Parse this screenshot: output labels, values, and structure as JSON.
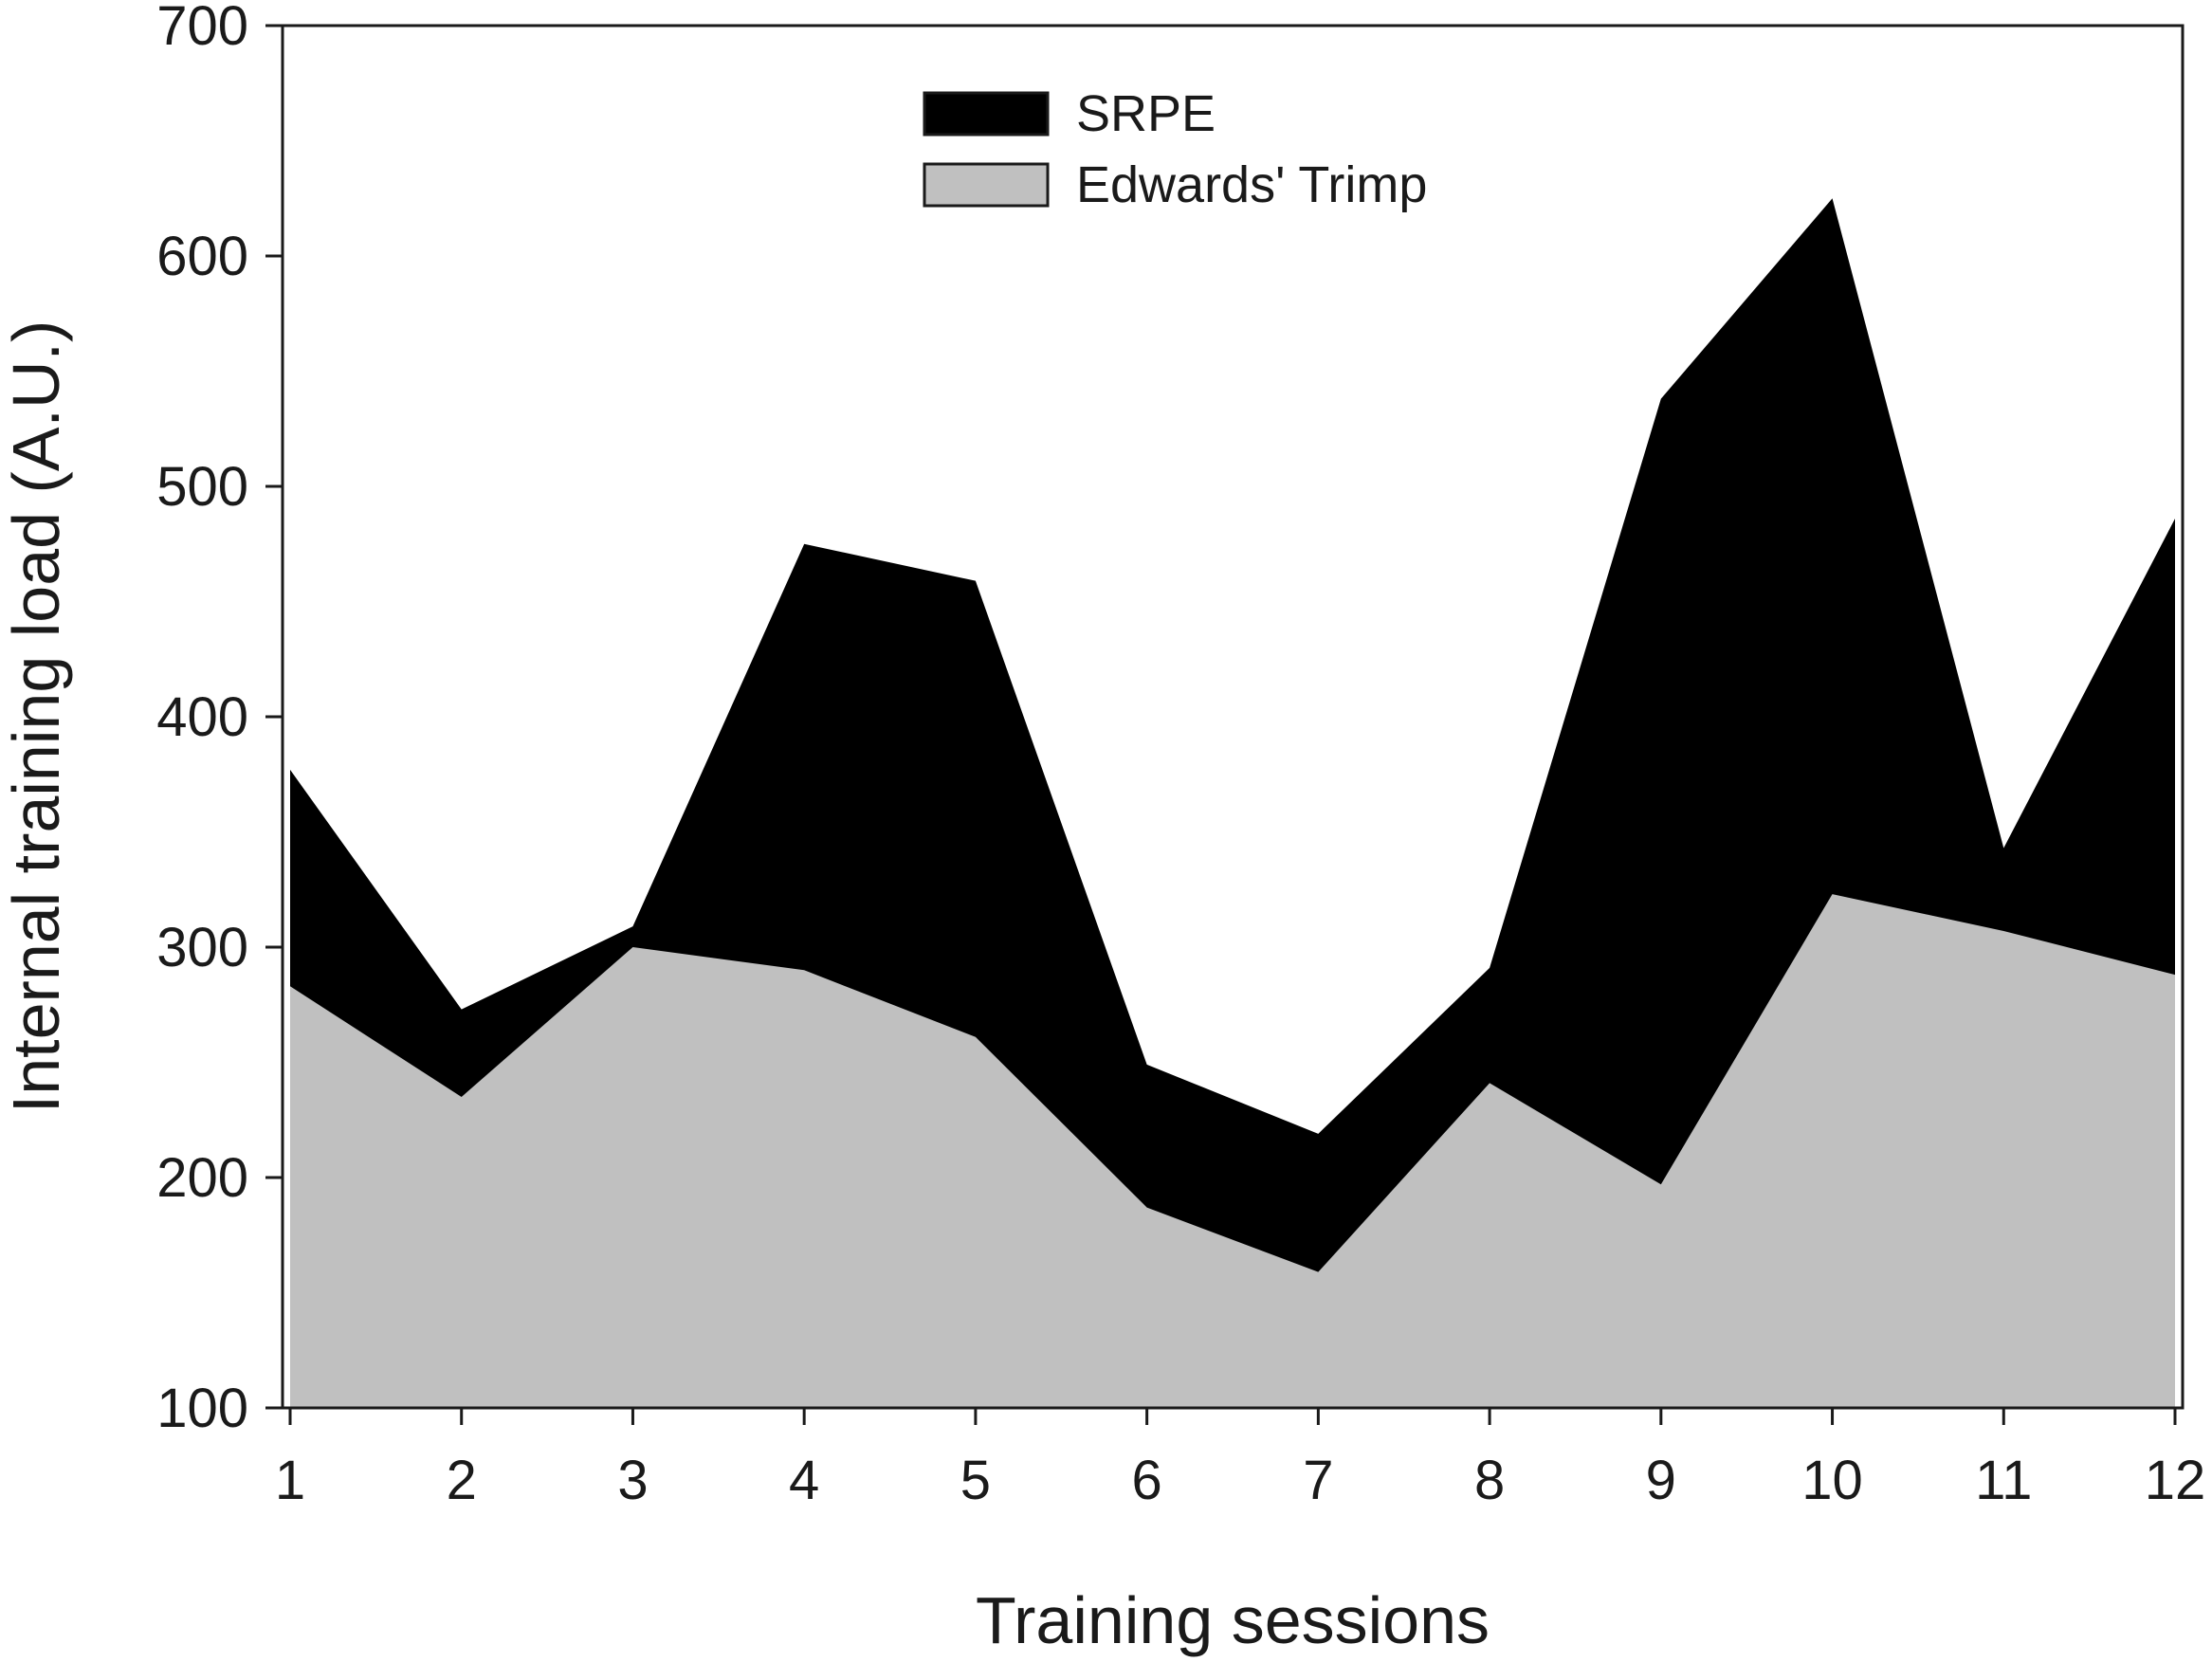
{
  "chart_data": {
    "type": "area",
    "title": "",
    "xlabel": "Training sessions",
    "ylabel": "Internal training load (A.U.)",
    "x": [
      1,
      2,
      3,
      4,
      5,
      6,
      7,
      8,
      9,
      10,
      11,
      12
    ],
    "xlim": [
      1,
      12
    ],
    "ylim": [
      100,
      700
    ],
    "yticks": [
      100,
      200,
      300,
      400,
      500,
      600,
      700
    ],
    "xticks": [
      1,
      2,
      3,
      4,
      5,
      6,
      7,
      8,
      9,
      10,
      11,
      12
    ],
    "grid": false,
    "legend_position": "top-center",
    "series": [
      {
        "name": "SRPE",
        "color": "#000000",
        "values": [
          377,
          273,
          309,
          475,
          459,
          249,
          219,
          291,
          538,
          625,
          343,
          486
        ]
      },
      {
        "name": "Edwards' Trimp",
        "color": "#c0c0c0",
        "values": [
          283,
          235,
          300,
          290,
          261,
          187,
          159,
          241,
          197,
          323,
          307,
          288
        ]
      }
    ]
  }
}
